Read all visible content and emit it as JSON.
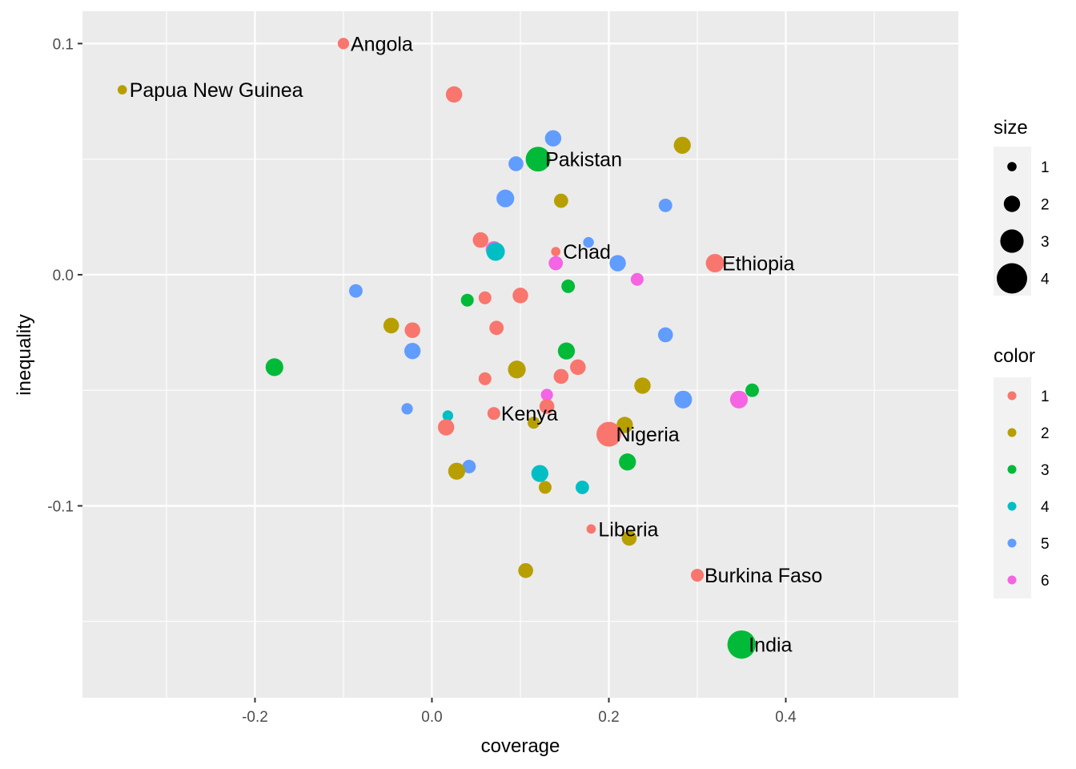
{
  "chart_data": {
    "type": "scatter",
    "xlabel": "coverage",
    "ylabel": "inequality",
    "xlim": [
      -0.395,
      0.595
    ],
    "ylim": [
      -0.183,
      0.114
    ],
    "x_ticks": [
      -0.2,
      0.0,
      0.2,
      0.4
    ],
    "x_tick_labels": [
      "-0.2",
      "0.0",
      "0.2",
      "0.4"
    ],
    "y_ticks": [
      -0.1,
      0.0,
      0.1
    ],
    "y_tick_labels": [
      "-0.1",
      "0.0",
      "0.1"
    ],
    "grid": true,
    "palette": [
      "#F8766D",
      "#B79F00",
      "#00BA38",
      "#00BFC4",
      "#619CFF",
      "#F564E3"
    ],
    "background": "#EBEBEB",
    "legend": {
      "placement": "right",
      "size": {
        "title": "size",
        "entries": [
          {
            "label": "1",
            "value": 1
          },
          {
            "label": "2",
            "value": 2
          },
          {
            "label": "3",
            "value": 3
          },
          {
            "label": "4",
            "value": 4
          }
        ]
      },
      "color": {
        "title": "color",
        "entries": [
          "1",
          "2",
          "3",
          "4",
          "5",
          "6"
        ]
      }
    },
    "points": [
      {
        "x": -0.1,
        "y": 0.1,
        "size": 1.3,
        "color": 1,
        "label": "Angola"
      },
      {
        "x": -0.35,
        "y": 0.08,
        "size": 1.0,
        "color": 2,
        "label": "Papua New Guinea"
      },
      {
        "x": 0.025,
        "y": 0.078,
        "size": 2.0,
        "color": 1
      },
      {
        "x": 0.137,
        "y": 0.059,
        "size": 2.0,
        "color": 5
      },
      {
        "x": 0.283,
        "y": 0.056,
        "size": 2.1,
        "color": 2
      },
      {
        "x": 0.12,
        "y": 0.05,
        "size": 3.2,
        "color": 3,
        "label": "Pakistan"
      },
      {
        "x": 0.095,
        "y": 0.048,
        "size": 1.8,
        "color": 5
      },
      {
        "x": 0.083,
        "y": 0.033,
        "size": 2.2,
        "color": 5
      },
      {
        "x": 0.146,
        "y": 0.032,
        "size": 1.7,
        "color": 2
      },
      {
        "x": 0.264,
        "y": 0.03,
        "size": 1.6,
        "color": 5
      },
      {
        "x": 0.055,
        "y": 0.015,
        "size": 1.9,
        "color": 1
      },
      {
        "x": 0.07,
        "y": 0.011,
        "size": 2.0,
        "color": 6
      },
      {
        "x": 0.072,
        "y": 0.01,
        "size": 2.3,
        "color": 4
      },
      {
        "x": 0.177,
        "y": 0.014,
        "size": 1.2,
        "color": 5
      },
      {
        "x": 0.14,
        "y": 0.01,
        "size": 1.0,
        "color": 1,
        "label": "Chad"
      },
      {
        "x": 0.14,
        "y": 0.005,
        "size": 1.7,
        "color": 6
      },
      {
        "x": 0.21,
        "y": 0.005,
        "size": 2.0,
        "color": 5
      },
      {
        "x": 0.32,
        "y": 0.005,
        "size": 2.3,
        "color": 1,
        "label": "Ethiopia"
      },
      {
        "x": 0.232,
        "y": -0.002,
        "size": 1.5,
        "color": 6
      },
      {
        "x": 0.154,
        "y": -0.005,
        "size": 1.6,
        "color": 3
      },
      {
        "x": -0.086,
        "y": -0.007,
        "size": 1.6,
        "color": 5
      },
      {
        "x": 0.06,
        "y": -0.01,
        "size": 1.5,
        "color": 1
      },
      {
        "x": 0.1,
        "y": -0.009,
        "size": 1.9,
        "color": 1
      },
      {
        "x": 0.04,
        "y": -0.011,
        "size": 1.5,
        "color": 3
      },
      {
        "x": -0.046,
        "y": -0.022,
        "size": 1.9,
        "color": 2
      },
      {
        "x": -0.022,
        "y": -0.024,
        "size": 1.9,
        "color": 1
      },
      {
        "x": 0.073,
        "y": -0.023,
        "size": 1.7,
        "color": 1
      },
      {
        "x": 0.264,
        "y": -0.026,
        "size": 1.8,
        "color": 5
      },
      {
        "x": -0.022,
        "y": -0.033,
        "size": 2.0,
        "color": 5
      },
      {
        "x": 0.152,
        "y": -0.033,
        "size": 2.1,
        "color": 3
      },
      {
        "x": -0.178,
        "y": -0.04,
        "size": 2.2,
        "color": 3
      },
      {
        "x": 0.165,
        "y": -0.04,
        "size": 1.9,
        "color": 1
      },
      {
        "x": 0.096,
        "y": -0.041,
        "size": 2.2,
        "color": 2
      },
      {
        "x": 0.06,
        "y": -0.045,
        "size": 1.5,
        "color": 1
      },
      {
        "x": 0.146,
        "y": -0.044,
        "size": 1.8,
        "color": 1
      },
      {
        "x": 0.238,
        "y": -0.048,
        "size": 2.0,
        "color": 2
      },
      {
        "x": 0.362,
        "y": -0.05,
        "size": 1.6,
        "color": 3
      },
      {
        "x": 0.13,
        "y": -0.052,
        "size": 1.4,
        "color": 6
      },
      {
        "x": 0.284,
        "y": -0.054,
        "size": 2.2,
        "color": 5
      },
      {
        "x": 0.347,
        "y": -0.054,
        "size": 2.2,
        "color": 6
      },
      {
        "x": -0.028,
        "y": -0.058,
        "size": 1.3,
        "color": 5
      },
      {
        "x": 0.13,
        "y": -0.057,
        "size": 1.8,
        "color": 1
      },
      {
        "x": 0.07,
        "y": -0.06,
        "size": 1.5,
        "color": 1,
        "label": "Kenya"
      },
      {
        "x": 0.018,
        "y": -0.061,
        "size": 1.2,
        "color": 4
      },
      {
        "x": 0.115,
        "y": -0.064,
        "size": 1.4,
        "color": 2
      },
      {
        "x": 0.218,
        "y": -0.065,
        "size": 2.0,
        "color": 2
      },
      {
        "x": 0.016,
        "y": -0.066,
        "size": 2.0,
        "color": 1
      },
      {
        "x": 0.2,
        "y": -0.069,
        "size": 3.2,
        "color": 1,
        "label": "Nigeria"
      },
      {
        "x": 0.221,
        "y": -0.081,
        "size": 2.1,
        "color": 3
      },
      {
        "x": 0.042,
        "y": -0.083,
        "size": 1.6,
        "color": 5
      },
      {
        "x": 0.028,
        "y": -0.085,
        "size": 2.1,
        "color": 2
      },
      {
        "x": 0.122,
        "y": -0.086,
        "size": 2.1,
        "color": 4
      },
      {
        "x": 0.128,
        "y": -0.092,
        "size": 1.5,
        "color": 2
      },
      {
        "x": 0.17,
        "y": -0.092,
        "size": 1.6,
        "color": 4
      },
      {
        "x": 0.18,
        "y": -0.11,
        "size": 1.0,
        "color": 1,
        "label": "Liberia"
      },
      {
        "x": 0.223,
        "y": -0.114,
        "size": 1.8,
        "color": 2
      },
      {
        "x": 0.106,
        "y": -0.128,
        "size": 1.8,
        "color": 2
      },
      {
        "x": 0.3,
        "y": -0.13,
        "size": 1.5,
        "color": 1,
        "label": "Burkina Faso"
      },
      {
        "x": 0.35,
        "y": -0.16,
        "size": 3.7,
        "color": 3,
        "label": "India"
      }
    ]
  }
}
